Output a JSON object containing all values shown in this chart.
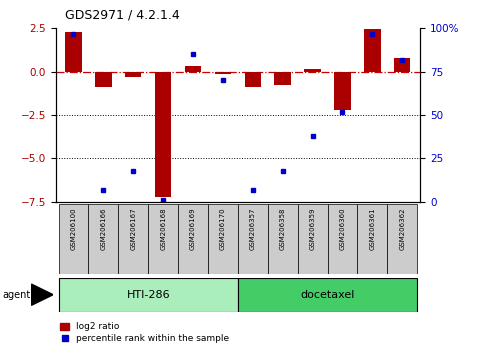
{
  "title": "GDS2971 / 4.2.1.4",
  "samples": [
    "GSM206100",
    "GSM206166",
    "GSM206167",
    "GSM206168",
    "GSM206169",
    "GSM206170",
    "GSM206357",
    "GSM206358",
    "GSM206359",
    "GSM206360",
    "GSM206361",
    "GSM206362"
  ],
  "log2_ratio": [
    2.3,
    -0.9,
    -0.3,
    -7.2,
    0.3,
    -0.15,
    -0.9,
    -0.75,
    0.15,
    -2.2,
    2.45,
    0.8
  ],
  "percentile": [
    97,
    7,
    18,
    1,
    85,
    70,
    7,
    18,
    38,
    52,
    97,
    82
  ],
  "groups": [
    {
      "label": "HTI-286",
      "start": 0,
      "end": 5,
      "color": "#AAEEBB"
    },
    {
      "label": "docetaxel",
      "start": 6,
      "end": 11,
      "color": "#44CC66"
    }
  ],
  "group_row_label": "agent",
  "ylim": [
    -7.5,
    2.5
  ],
  "yticks_left": [
    -7.5,
    -5.0,
    -2.5,
    0.0,
    2.5
  ],
  "yticks_right": [
    0,
    25,
    50,
    75,
    100
  ],
  "bar_color": "#AA0000",
  "dot_color": "#0000CC",
  "hline_color": "#CC0000",
  "dotted_lines": [
    -2.5,
    -5.0
  ],
  "legend_bar_label": "log2 ratio",
  "legend_dot_label": "percentile rank within the sample"
}
